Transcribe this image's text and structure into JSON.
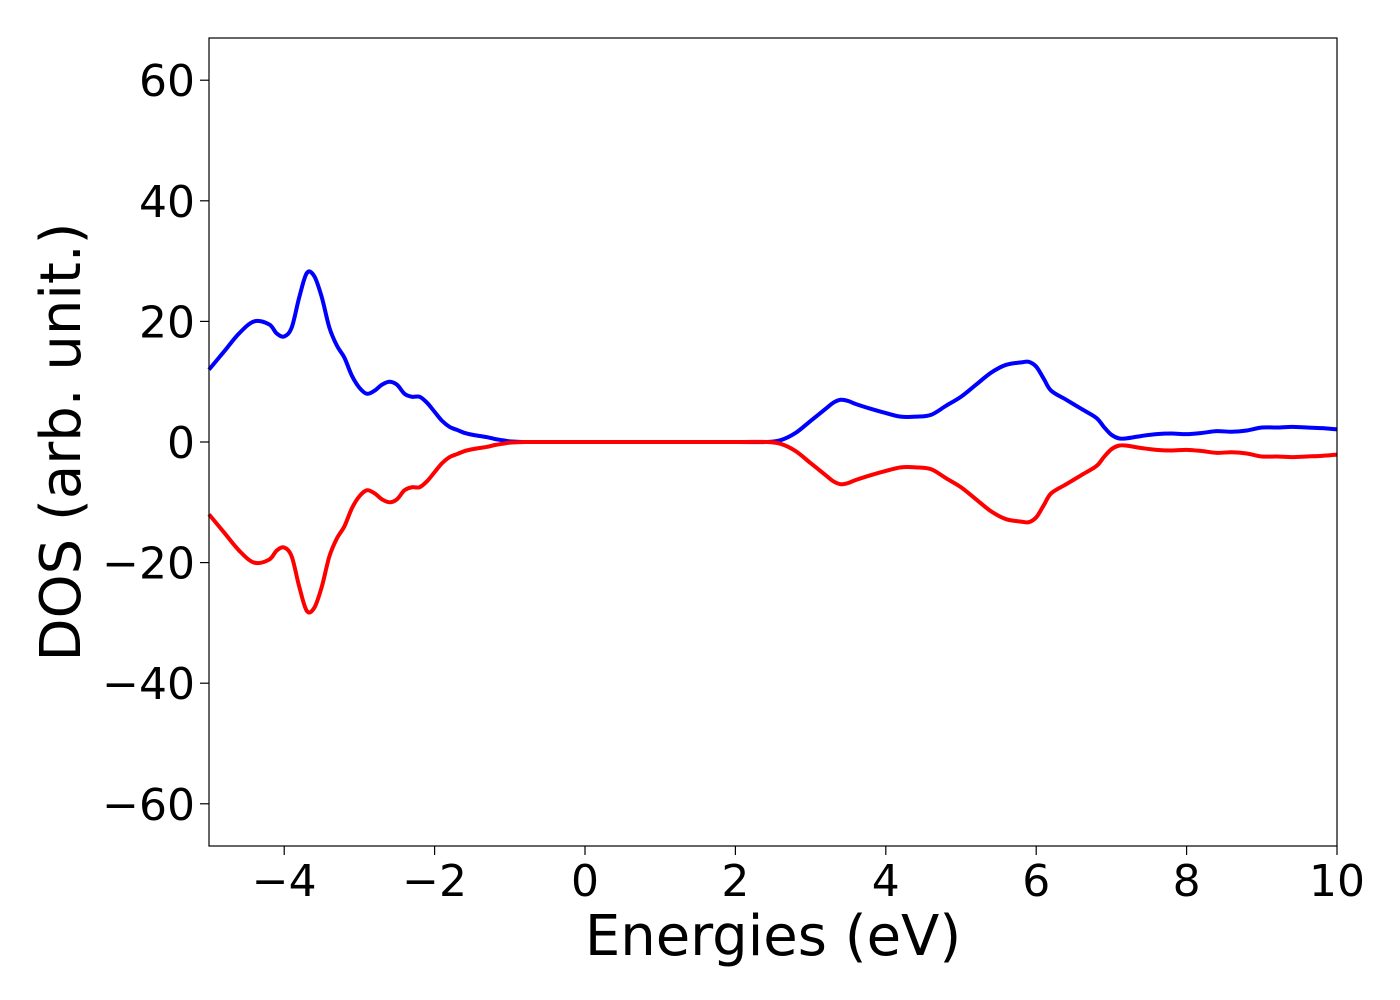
{
  "chart_data": {
    "type": "line",
    "title": "",
    "xlabel": "Energies (eV)",
    "ylabel": "DOS (arb. unit.)",
    "xlim": [
      -5,
      10
    ],
    "ylim": [
      -67,
      67
    ],
    "x_ticks": [
      -4,
      -2,
      0,
      2,
      4,
      6,
      8,
      10
    ],
    "x_tick_labels": [
      "−4",
      "−2",
      "0",
      "2",
      "4",
      "6",
      "8",
      "10"
    ],
    "y_ticks": [
      -60,
      -40,
      -20,
      0,
      20,
      40,
      60
    ],
    "y_tick_labels": [
      "−60",
      "−40",
      "−20",
      "0",
      "20",
      "40",
      "60"
    ],
    "grid": false,
    "legend": "none",
    "series": [
      {
        "color": "#0000ff",
        "x": [
          -5.0,
          -4.8,
          -4.6,
          -4.4,
          -4.2,
          -4.1,
          -4.0,
          -3.9,
          -3.8,
          -3.7,
          -3.6,
          -3.5,
          -3.4,
          -3.3,
          -3.2,
          -3.1,
          -3.0,
          -2.9,
          -2.8,
          -2.7,
          -2.6,
          -2.5,
          -2.4,
          -2.3,
          -2.2,
          -2.1,
          -2.0,
          -1.9,
          -1.8,
          -1.7,
          -1.6,
          -1.5,
          -1.4,
          -1.3,
          -1.2,
          -1.1,
          -1.0,
          -0.9,
          -0.8,
          -0.6,
          -0.4,
          0.0,
          1.0,
          2.0,
          2.4,
          2.6,
          2.8,
          3.0,
          3.2,
          3.3,
          3.4,
          3.5,
          3.6,
          3.8,
          4.0,
          4.2,
          4.4,
          4.6,
          4.8,
          5.0,
          5.2,
          5.4,
          5.6,
          5.8,
          5.9,
          6.0,
          6.1,
          6.2,
          6.4,
          6.6,
          6.8,
          6.9,
          7.0,
          7.1,
          7.2,
          7.4,
          7.6,
          7.8,
          8.0,
          8.2,
          8.4,
          8.6,
          8.8,
          9.0,
          9.2,
          9.4,
          9.6,
          9.8,
          10.0
        ],
        "y": [
          12,
          15,
          18,
          20,
          19.5,
          18,
          17.5,
          19,
          24,
          28,
          27.5,
          24,
          19,
          16,
          14,
          11,
          9,
          8,
          8.5,
          9.5,
          10,
          9.5,
          8,
          7.5,
          7.5,
          6.5,
          5,
          3.5,
          2.5,
          2,
          1.5,
          1.2,
          1.0,
          0.8,
          0.5,
          0.3,
          0.1,
          0.05,
          0.0,
          0.0,
          0.0,
          0.0,
          0.0,
          0.0,
          0.0,
          0.3,
          1.5,
          3.5,
          5.5,
          6.5,
          7,
          6.8,
          6.3,
          5.5,
          4.8,
          4.2,
          4.2,
          4.5,
          6,
          7.5,
          9.5,
          11.5,
          12.8,
          13.2,
          13.3,
          12.5,
          10.5,
          8.5,
          7,
          5.5,
          4,
          2.5,
          1.2,
          0.6,
          0.6,
          1.0,
          1.3,
          1.4,
          1.3,
          1.5,
          1.8,
          1.7,
          1.9,
          2.4,
          2.4,
          2.5,
          2.4,
          2.3,
          2.1
        ]
      },
      {
        "color": "#ff0000",
        "x": [
          -5.0,
          -4.8,
          -4.6,
          -4.4,
          -4.2,
          -4.1,
          -4.0,
          -3.9,
          -3.8,
          -3.7,
          -3.6,
          -3.5,
          -3.4,
          -3.3,
          -3.2,
          -3.1,
          -3.0,
          -2.9,
          -2.8,
          -2.7,
          -2.6,
          -2.5,
          -2.4,
          -2.3,
          -2.2,
          -2.1,
          -2.0,
          -1.9,
          -1.8,
          -1.7,
          -1.6,
          -1.5,
          -1.4,
          -1.3,
          -1.2,
          -1.1,
          -1.0,
          -0.9,
          -0.8,
          -0.6,
          -0.4,
          0.0,
          1.0,
          2.0,
          2.4,
          2.6,
          2.8,
          3.0,
          3.2,
          3.3,
          3.4,
          3.5,
          3.6,
          3.8,
          4.0,
          4.2,
          4.4,
          4.6,
          4.8,
          5.0,
          5.2,
          5.4,
          5.6,
          5.8,
          5.9,
          6.0,
          6.1,
          6.2,
          6.4,
          6.6,
          6.8,
          6.9,
          7.0,
          7.1,
          7.2,
          7.4,
          7.6,
          7.8,
          8.0,
          8.2,
          8.4,
          8.6,
          8.8,
          9.0,
          9.2,
          9.4,
          9.6,
          9.8,
          10.0
        ],
        "y": [
          -12,
          -15,
          -18,
          -20,
          -19.5,
          -18,
          -17.5,
          -19,
          -24,
          -28,
          -27.5,
          -24,
          -19,
          -16,
          -14,
          -11,
          -9,
          -8,
          -8.5,
          -9.5,
          -10,
          -9.5,
          -8,
          -7.5,
          -7.5,
          -6.5,
          -5,
          -3.5,
          -2.5,
          -2,
          -1.5,
          -1.2,
          -1.0,
          -0.8,
          -0.5,
          -0.3,
          -0.1,
          -0.05,
          0.0,
          0.0,
          0.0,
          0.0,
          0.0,
          0.0,
          0.0,
          -0.3,
          -1.5,
          -3.5,
          -5.5,
          -6.5,
          -7,
          -6.8,
          -6.3,
          -5.5,
          -4.8,
          -4.2,
          -4.2,
          -4.5,
          -6,
          -7.5,
          -9.5,
          -11.5,
          -12.8,
          -13.2,
          -13.3,
          -12.5,
          -10.5,
          -8.5,
          -7,
          -5.5,
          -4,
          -2.5,
          -1.2,
          -0.6,
          -0.6,
          -1.0,
          -1.3,
          -1.4,
          -1.3,
          -1.5,
          -1.8,
          -1.7,
          -1.9,
          -2.4,
          -2.4,
          -2.5,
          -2.4,
          -2.3,
          -2.1
        ]
      }
    ]
  }
}
